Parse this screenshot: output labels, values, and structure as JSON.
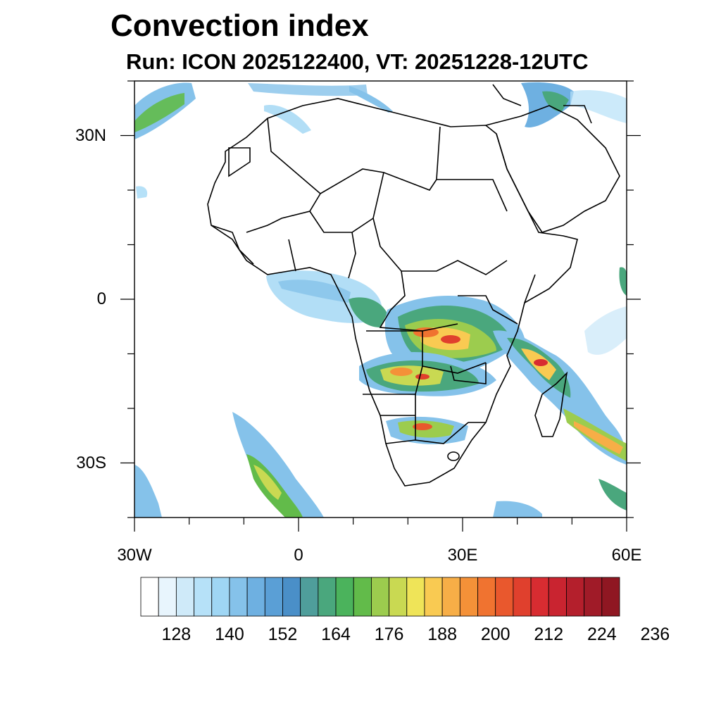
{
  "title": "Convection index",
  "subtitle": "Run: ICON 2025122400,  VT: 20251228-12UTC",
  "map": {
    "lon_range": [
      -30,
      60
    ],
    "lat_range": [
      -40,
      40
    ],
    "x_ticks": [
      {
        "lon": -30,
        "label": "30W"
      },
      {
        "lon": 0,
        "label": "0"
      },
      {
        "lon": 30,
        "label": "30E"
      },
      {
        "lon": 60,
        "label": "60E"
      }
    ],
    "y_ticks": [
      {
        "lat": 30,
        "label": "30N"
      },
      {
        "lat": 0,
        "label": "0"
      },
      {
        "lat": -30,
        "label": "30S"
      }
    ],
    "region_description": "Africa and surroundings"
  },
  "colorbar": {
    "colors": [
      "#ffffff",
      "#e8f5fd",
      "#cfeaf9",
      "#b6e1f8",
      "#9fd6f4",
      "#85c2ea",
      "#6eb0e1",
      "#5a9fd6",
      "#4a8fc8",
      "#4f9e9b",
      "#4aa77d",
      "#4bb35c",
      "#62bb4a",
      "#9ccc4e",
      "#c9d952",
      "#efe458",
      "#f9ca52",
      "#f7ae47",
      "#f49138",
      "#f07330",
      "#e9582d",
      "#e0402d",
      "#d82c31",
      "#c92430",
      "#b41f2c",
      "#a01b28",
      "#8f1722"
    ],
    "labels": [
      "128",
      "140",
      "152",
      "164",
      "176",
      "188",
      "200",
      "212",
      "224",
      "236"
    ]
  }
}
